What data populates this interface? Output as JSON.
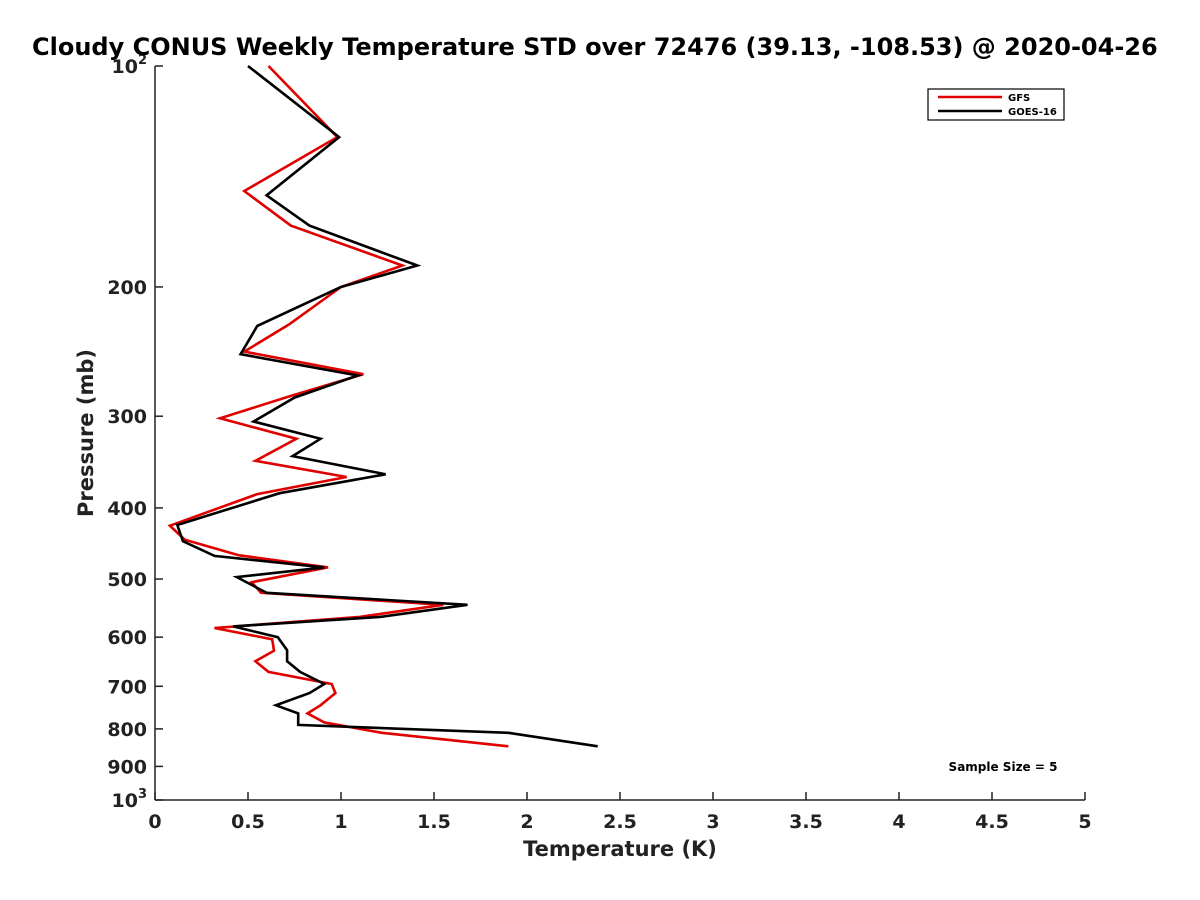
{
  "chart_data": {
    "type": "line",
    "title": "Cloudy CONUS Weekly Temperature STD over 72476 (39.13, -108.53) @ 2020-04-26",
    "xlabel": "Temperature (K)",
    "ylabel": "Pressure (mb)",
    "xlim": [
      0,
      5
    ],
    "ylim": [
      100,
      1000
    ],
    "y_scale": "log",
    "y_reversed": true,
    "grid": false,
    "legend_position": "top-right",
    "annotation": "Sample Size = 5",
    "x_ticks": [
      {
        "value": 0,
        "label": "0"
      },
      {
        "value": 0.5,
        "label": "0.5"
      },
      {
        "value": 1,
        "label": "1"
      },
      {
        "value": 1.5,
        "label": "1.5"
      },
      {
        "value": 2,
        "label": "2"
      },
      {
        "value": 2.5,
        "label": "2.5"
      },
      {
        "value": 3,
        "label": "3"
      },
      {
        "value": 3.5,
        "label": "3.5"
      },
      {
        "value": 4,
        "label": "4"
      },
      {
        "value": 4.5,
        "label": "4.5"
      },
      {
        "value": 5,
        "label": "5"
      }
    ],
    "y_ticks": [
      {
        "value": 100,
        "base": "10",
        "exp": "2"
      },
      {
        "value": 200,
        "base": "200",
        "exp": ""
      },
      {
        "value": 300,
        "base": "300",
        "exp": ""
      },
      {
        "value": 400,
        "base": "400",
        "exp": ""
      },
      {
        "value": 500,
        "base": "500",
        "exp": ""
      },
      {
        "value": 600,
        "base": "600",
        "exp": ""
      },
      {
        "value": 700,
        "base": "700",
        "exp": ""
      },
      {
        "value": 800,
        "base": "800",
        "exp": ""
      },
      {
        "value": 900,
        "base": "900",
        "exp": ""
      },
      {
        "value": 1000,
        "base": "10",
        "exp": "3"
      }
    ],
    "series": [
      {
        "name": "GFS",
        "color": "#e00000",
        "points": [
          [
            0.61,
            100
          ],
          [
            0.98,
            125
          ],
          [
            0.48,
            148
          ],
          [
            0.73,
            165
          ],
          [
            1.33,
            187
          ],
          [
            1.0,
            200
          ],
          [
            0.72,
            225
          ],
          [
            0.48,
            245
          ],
          [
            1.12,
            263
          ],
          [
            0.72,
            282
          ],
          [
            0.35,
            302
          ],
          [
            0.76,
            322
          ],
          [
            0.54,
            345
          ],
          [
            1.03,
            363
          ],
          [
            0.55,
            383
          ],
          [
            0.08,
            423
          ],
          [
            0.16,
            442
          ],
          [
            0.45,
            464
          ],
          [
            0.93,
            482
          ],
          [
            0.52,
            505
          ],
          [
            0.57,
            522
          ],
          [
            1.55,
            542
          ],
          [
            1.1,
            563
          ],
          [
            0.32,
            583
          ],
          [
            0.63,
            604
          ],
          [
            0.64,
            626
          ],
          [
            0.54,
            647
          ],
          [
            0.61,
            669
          ],
          [
            0.95,
            695
          ],
          [
            0.97,
            715
          ],
          [
            0.89,
            743
          ],
          [
            0.82,
            762
          ],
          [
            0.91,
            784
          ],
          [
            1.22,
            810
          ],
          [
            1.9,
            845
          ]
        ]
      },
      {
        "name": "GOES-16",
        "color": "#000000",
        "points": [
          [
            0.5,
            100
          ],
          [
            0.99,
            125
          ],
          [
            0.6,
            150
          ],
          [
            0.83,
            165
          ],
          [
            1.41,
            187
          ],
          [
            1.0,
            200
          ],
          [
            0.55,
            226
          ],
          [
            0.46,
            247
          ],
          [
            1.09,
            264
          ],
          [
            0.75,
            283
          ],
          [
            0.53,
            305
          ],
          [
            0.89,
            322
          ],
          [
            0.74,
            340
          ],
          [
            1.24,
            360
          ],
          [
            0.67,
            382
          ],
          [
            0.12,
            422
          ],
          [
            0.15,
            444
          ],
          [
            0.32,
            465
          ],
          [
            0.91,
            482
          ],
          [
            0.44,
            497
          ],
          [
            0.6,
            522
          ],
          [
            1.68,
            542
          ],
          [
            1.21,
            563
          ],
          [
            0.42,
            580
          ],
          [
            0.66,
            600
          ],
          [
            0.71,
            625
          ],
          [
            0.71,
            647
          ],
          [
            0.78,
            669
          ],
          [
            0.91,
            695
          ],
          [
            0.83,
            715
          ],
          [
            0.65,
            743
          ],
          [
            0.77,
            762
          ],
          [
            0.77,
            790
          ],
          [
            1.9,
            810
          ],
          [
            2.38,
            845
          ]
        ]
      }
    ]
  }
}
